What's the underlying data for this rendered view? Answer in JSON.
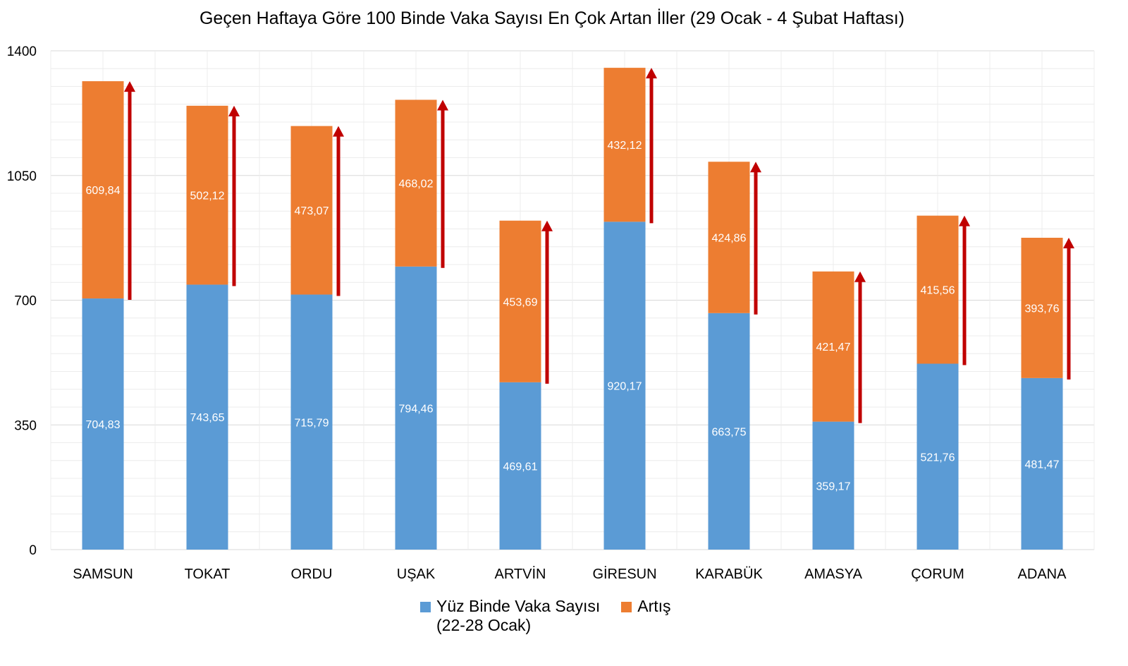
{
  "chart_data": {
    "type": "bar",
    "stacked": true,
    "title": "Geçen Haftaya Göre 100 Binde Vaka Sayısı En Çok Artan İller (29 Ocak - 4 Şubat Haftası)",
    "xlabel": "",
    "ylabel": "",
    "ylim": [
      0,
      1400
    ],
    "yticks": [
      0,
      350,
      700,
      1050,
      1400
    ],
    "grid": true,
    "legend_position": "bottom",
    "categories": [
      "SAMSUN",
      "TOKAT",
      "ORDU",
      "UŞAK",
      "ARTVİN",
      "GİRESUN",
      "KARABÜK",
      "AMASYA",
      "ÇORUM",
      "ADANA"
    ],
    "series": [
      {
        "name": "Yüz Binde Vaka Sayısı (22-28 Ocak)",
        "color": "#5B9BD5",
        "values": [
          704.83,
          743.65,
          715.79,
          794.46,
          469.61,
          920.17,
          663.75,
          359.17,
          521.76,
          481.47
        ],
        "labels": [
          "704,83",
          "743,65",
          "715,79",
          "794,46",
          "469,61",
          "920,17",
          "663,75",
          "359,17",
          "521,76",
          "481,47"
        ]
      },
      {
        "name": "Artış",
        "color": "#ED7D31",
        "values": [
          609.84,
          502.12,
          473.07,
          468.02,
          453.69,
          432.12,
          424.86,
          421.47,
          415.56,
          393.76
        ],
        "labels": [
          "609,84",
          "502,12",
          "473,07",
          "468,02",
          "453,69",
          "432,12",
          "424,86",
          "421,47",
          "415,56",
          "393,76"
        ]
      }
    ],
    "annotations": {
      "increase_arrows": true,
      "arrow_color": "#C00000"
    },
    "legend": {
      "series1_line1": "Yüz Binde Vaka Sayısı",
      "series1_line2": "(22-28 Ocak)",
      "series2": "Artış"
    }
  }
}
